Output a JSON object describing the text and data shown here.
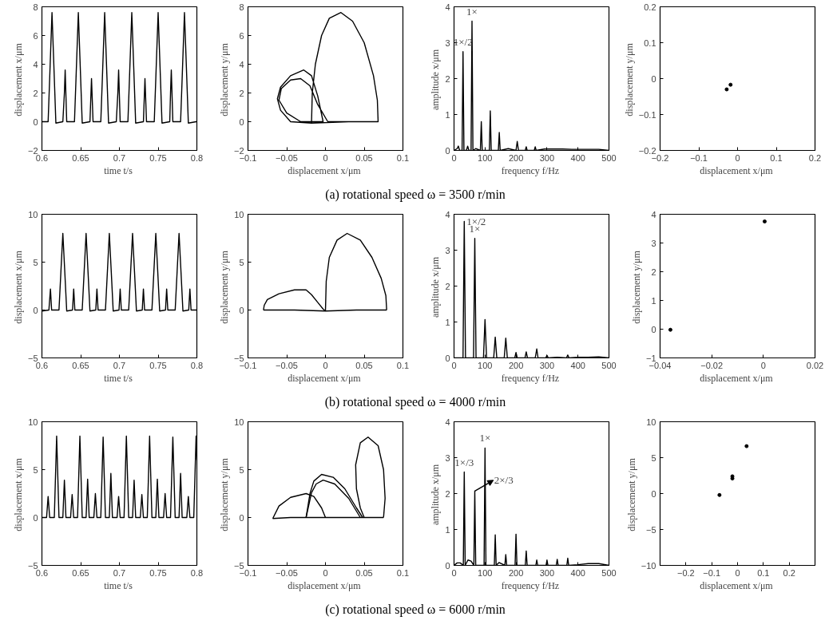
{
  "chart_data": [
    {
      "type": "line",
      "xlabel": "time  t/s",
      "ylabel": "displacement  x/μm",
      "xlim": [
        0.6,
        0.8
      ],
      "ylim": [
        -2,
        8
      ],
      "xticks": [
        0.6,
        0.65,
        0.7,
        0.75,
        0.8
      ],
      "yticks": [
        -2,
        0,
        2,
        4,
        6,
        8
      ],
      "grid": false,
      "line_style": "solid",
      "annotations": [
        "(a) rotational speed ω = 3500 r/min"
      ],
      "series": [
        {
          "color": "#000000",
          "x": [
            0.6,
            0.608,
            0.61,
            0.613,
            0.616,
            0.618,
            0.627,
            0.629,
            0.63,
            0.632,
            0.642,
            0.644,
            0.647,
            0.65,
            0.652,
            0.662,
            0.663,
            0.664,
            0.666,
            0.676,
            0.678,
            0.681,
            0.684,
            0.686,
            0.696,
            0.698,
            0.699,
            0.701,
            0.711,
            0.713,
            0.716,
            0.719,
            0.721,
            0.731,
            0.732,
            0.733,
            0.735,
            0.745,
            0.747,
            0.75,
            0.753,
            0.755,
            0.765,
            0.766,
            0.767,
            0.769,
            0.779,
            0.781,
            0.784,
            0.787,
            0.789,
            0.799,
            0.8
          ],
          "values": [
            0,
            0,
            3,
            7.6,
            3,
            -0.1,
            0,
            2,
            3.6,
            0,
            0,
            3,
            7.6,
            3,
            -0.1,
            0,
            1.5,
            3.0,
            0,
            0,
            3,
            7.6,
            3,
            -0.1,
            0,
            2,
            3.6,
            0,
            0,
            3,
            7.6,
            3,
            -0.1,
            0,
            1.5,
            3.0,
            0,
            0,
            3,
            7.6,
            3,
            -0.1,
            0,
            2,
            3.6,
            0,
            0,
            3,
            7.6,
            3,
            -0.1,
            0,
            0
          ]
        }
      ]
    },
    {
      "type": "line",
      "xlabel": "displacement  x/μm",
      "ylabel": "displacement  y/μm",
      "xlim": [
        -0.1,
        0.1
      ],
      "ylim": [
        -2,
        8
      ],
      "xticks": [
        -0.1,
        -0.05,
        0,
        0.05,
        0.1
      ],
      "yticks": [
        -2,
        0,
        2,
        4,
        6,
        8
      ],
      "grid": false,
      "line_style": "solid",
      "series": [
        {
          "color": "#000000",
          "x": [
            -0.018,
            -0.017,
            -0.013,
            -0.005,
            0.005,
            0.02,
            0.035,
            0.05,
            0.062,
            0.067,
            0.068,
            0.03,
            -0.018,
            -0.045,
            -0.058,
            -0.062,
            -0.058,
            -0.045,
            -0.028,
            -0.018,
            -0.01,
            -0.003,
            -0.032,
            -0.05,
            -0.06,
            -0.057,
            -0.045,
            -0.032,
            -0.02,
            -0.01,
            0.003,
            0.068
          ],
          "values": [
            -0.1,
            2,
            4,
            6,
            7.2,
            7.6,
            7.0,
            5.5,
            3.2,
            1.5,
            0,
            0,
            -0.1,
            0,
            0.8,
            1.6,
            2.4,
            3.2,
            3.6,
            3.2,
            1.8,
            0,
            0,
            0.6,
            1.5,
            2.3,
            2.9,
            3.0,
            2.5,
            1.2,
            0,
            0
          ]
        }
      ]
    },
    {
      "type": "line",
      "xlabel": "frequency  f/Hz",
      "ylabel": "amplitude  x/μm",
      "xlim": [
        0,
        500
      ],
      "ylim": [
        0,
        4
      ],
      "xticks": [
        0,
        100,
        200,
        300,
        400,
        500
      ],
      "yticks": [
        0,
        1,
        2,
        3,
        4
      ],
      "grid": false,
      "line_style": "solid",
      "annotations": [
        {
          "text": "1×/2",
          "x": 29,
          "y": 2.75
        },
        {
          "text": "1×",
          "x": 58,
          "y": 3.6
        }
      ],
      "series": [
        {
          "color": "#000000",
          "x": [
            0,
            10,
            14,
            18,
            26,
            29,
            32,
            40,
            44,
            48,
            55,
            58,
            61,
            70,
            85,
            88,
            91,
            114,
            117,
            120,
            143,
            146,
            149,
            175,
            200,
            204,
            208,
            230,
            233,
            236,
            259,
            262,
            265,
            292,
            350,
            380,
            408,
            438,
            467,
            500
          ],
          "values": [
            0,
            0.05,
            0.12,
            0,
            0,
            2.75,
            0,
            0,
            0.12,
            0,
            0,
            3.6,
            0,
            0.05,
            0,
            0.8,
            0,
            0,
            1.1,
            0,
            0,
            0.5,
            0,
            0.05,
            0,
            0.25,
            0,
            0,
            0.1,
            0,
            0,
            0.1,
            0,
            0.04,
            0.04,
            0.03,
            0.03,
            0.03,
            0.03,
            0
          ]
        }
      ]
    },
    {
      "type": "scatter",
      "xlabel": "displacement  x/μm",
      "ylabel": "displacement  y/μm",
      "xlim": [
        -0.2,
        0.2
      ],
      "ylim": [
        -0.2,
        0.2
      ],
      "xticks": [
        -0.2,
        -0.1,
        0,
        0.1,
        0.2
      ],
      "yticks": [
        -0.2,
        -0.1,
        0,
        0.1,
        0.2
      ],
      "grid": false,
      "marker": "circle",
      "series": [
        {
          "color": "#000000",
          "x": [
            -0.028,
            -0.018
          ],
          "values": [
            -0.03,
            -0.017
          ]
        }
      ]
    },
    {
      "type": "line",
      "xlabel": "time  t/s",
      "ylabel": "displacement  x/μm",
      "xlim": [
        0.6,
        0.8
      ],
      "ylim": [
        -5,
        10
      ],
      "xticks": [
        0.6,
        0.65,
        0.7,
        0.75,
        0.8
      ],
      "yticks": [
        -5,
        0,
        5,
        10
      ],
      "grid": false,
      "line_style": "solid",
      "annotations": [
        "(b) rotational speed ω = 4000 r/min"
      ],
      "series": [
        {
          "color": "#000000",
          "x": [
            0.6,
            0.609,
            0.611,
            0.6125,
            0.622,
            0.6245,
            0.627,
            0.6295,
            0.632,
            0.6395,
            0.641,
            0.6425,
            0.652,
            0.6545,
            0.657,
            0.6595,
            0.662,
            0.6695,
            0.671,
            0.6725,
            0.682,
            0.6845,
            0.687,
            0.6895,
            0.692,
            0.6995,
            0.701,
            0.7025,
            0.712,
            0.7145,
            0.717,
            0.7195,
            0.722,
            0.7295,
            0.731,
            0.7325,
            0.742,
            0.7445,
            0.747,
            0.7495,
            0.752,
            0.7595,
            0.761,
            0.7625,
            0.772,
            0.7745,
            0.777,
            0.7795,
            0.782,
            0.7895,
            0.791,
            0.7925,
            0.8
          ],
          "values": [
            -0.1,
            0,
            2.2,
            0,
            0,
            4,
            8,
            4,
            -0.1,
            0,
            2.2,
            0,
            0,
            4,
            8,
            4,
            -0.1,
            0,
            2.2,
            0,
            0,
            4,
            8,
            4,
            -0.1,
            0,
            2.2,
            0,
            0,
            4,
            8,
            4,
            -0.1,
            0,
            2.2,
            0,
            0,
            4,
            8,
            4,
            -0.1,
            0,
            2.2,
            0,
            0,
            4,
            8,
            4,
            -0.1,
            0,
            2.2,
            0,
            0
          ]
        }
      ]
    },
    {
      "type": "line",
      "xlabel": "displacement  x/μm",
      "ylabel": "displacement  y/μm",
      "xlim": [
        -0.1,
        0.1
      ],
      "ylim": [
        -5,
        10
      ],
      "xticks": [
        -0.1,
        -0.05,
        0,
        0.05,
        0.1
      ],
      "yticks": [
        -5,
        0,
        5,
        10
      ],
      "grid": false,
      "line_style": "solid",
      "series": [
        {
          "color": "#000000",
          "x": [
            0,
            0.001,
            0.005,
            0.015,
            0.028,
            0.045,
            0.06,
            0.072,
            0.078,
            0.079
          ],
          "values": [
            -0.1,
            3,
            5.5,
            7.3,
            8.0,
            7.3,
            5.5,
            3.3,
            1.5,
            0
          ]
        },
        {
          "color": "#000000",
          "x": [
            -0.08,
            -0.04,
            0,
            0.04,
            0.079
          ],
          "values": [
            0,
            0,
            -0.1,
            0,
            0
          ]
        },
        {
          "color": "#000000",
          "x": [
            -0.08,
            -0.079,
            -0.075,
            -0.06,
            -0.04,
            -0.025,
            -0.018,
            -0.01,
            -0.003,
            0
          ],
          "values": [
            0,
            0.5,
            1.1,
            1.7,
            2.1,
            2.1,
            1.6,
            0.8,
            0.1,
            -0.1
          ]
        }
      ]
    },
    {
      "type": "line",
      "xlabel": "frequency  f/Hz",
      "ylabel": "amplitude  x/μm",
      "xlim": [
        0,
        500
      ],
      "ylim": [
        0,
        4
      ],
      "xticks": [
        0,
        100,
        200,
        300,
        400,
        500
      ],
      "yticks": [
        0,
        1,
        2,
        3,
        4
      ],
      "grid": false,
      "line_style": "solid",
      "annotations": [
        {
          "text": "1×/2",
          "x": 33,
          "y": 3.8
        },
        {
          "text": "1×",
          "x": 67,
          "y": 3.33
        }
      ],
      "series": [
        {
          "color": "#000000",
          "x": [
            0,
            29,
            33,
            37,
            63,
            67,
            71,
            95,
            100,
            105,
            128,
            133,
            138,
            162,
            167,
            172,
            196,
            200,
            204,
            229,
            233,
            237,
            262,
            267,
            271,
            296,
            300,
            304,
            333,
            363,
            367,
            371,
            400,
            433,
            467,
            500
          ],
          "values": [
            0,
            0,
            3.8,
            0,
            0,
            3.33,
            0,
            0,
            1.07,
            0,
            0,
            0.58,
            0,
            0,
            0.55,
            0,
            0,
            0.15,
            0,
            0,
            0.17,
            0,
            0,
            0.25,
            0,
            0,
            0.07,
            0,
            0.02,
            0,
            0.08,
            0,
            0.02,
            0.02,
            0.03,
            0
          ]
        }
      ]
    },
    {
      "type": "scatter",
      "xlabel": "displacement  x/μm",
      "ylabel": "displacement  y/μm",
      "xlim": [
        -0.04,
        0.02
      ],
      "ylim": [
        -1,
        4
      ],
      "xticks": [
        -0.04,
        -0.02,
        0,
        0.02
      ],
      "yticks": [
        -1,
        0,
        1,
        2,
        3,
        4
      ],
      "grid": false,
      "marker": "circle",
      "series": [
        {
          "color": "#000000",
          "x": [
            -0.036,
            0.0005
          ],
          "values": [
            -0.02,
            3.75
          ]
        }
      ]
    },
    {
      "type": "line",
      "xlabel": "time  t/s",
      "ylabel": "displacement  x/μm",
      "xlim": [
        0.6,
        0.8
      ],
      "ylim": [
        -5,
        10
      ],
      "xticks": [
        0.6,
        0.65,
        0.7,
        0.75,
        0.8
      ],
      "yticks": [
        -5,
        0,
        5,
        10
      ],
      "grid": false,
      "line_style": "solid",
      "annotations": [
        "(c) rotational speed ω = 6000 r/min"
      ],
      "series": [
        {
          "color": "#000000",
          "x": [
            0.6,
            0.606,
            0.608,
            0.61,
            0.616,
            0.619,
            0.622,
            0.627,
            0.629,
            0.631,
            0.637,
            0.639,
            0.641,
            0.646,
            0.649,
            0.652,
            0.657,
            0.659,
            0.661,
            0.667,
            0.669,
            0.671,
            0.676,
            0.679,
            0.682,
            0.687,
            0.689,
            0.691,
            0.697,
            0.699,
            0.701,
            0.706,
            0.709,
            0.712,
            0.717,
            0.719,
            0.721,
            0.727,
            0.729,
            0.731,
            0.736,
            0.739,
            0.742,
            0.747,
            0.749,
            0.751,
            0.757,
            0.759,
            0.761,
            0.766,
            0.769,
            0.772,
            0.777,
            0.779,
            0.781,
            0.787,
            0.789,
            0.791,
            0.796,
            0.799,
            0.8
          ],
          "values": [
            0,
            0,
            2.2,
            0,
            0,
            8.5,
            0,
            0,
            3.9,
            0,
            0,
            2.4,
            0,
            0,
            8.5,
            0,
            0,
            4.0,
            0,
            0,
            2.5,
            0,
            0,
            8.4,
            0,
            0,
            4.6,
            0,
            0,
            2.2,
            0,
            0,
            8.5,
            0,
            0,
            3.9,
            0,
            0,
            2.4,
            0,
            0,
            8.5,
            0,
            0,
            4.0,
            0,
            0,
            2.5,
            0,
            0,
            8.4,
            0,
            0,
            4.6,
            0,
            0,
            2.2,
            0,
            0,
            8.5,
            6
          ]
        }
      ]
    },
    {
      "type": "line",
      "xlabel": "displacement  x/μm",
      "ylabel": "displacement  y/μm",
      "xlim": [
        -0.1,
        0.1
      ],
      "ylim": [
        -5,
        10
      ],
      "xticks": [
        -0.1,
        -0.05,
        0,
        0.05,
        0.1
      ],
      "yticks": [
        -5,
        0,
        5,
        10
      ],
      "grid": false,
      "line_style": "solid",
      "series": [
        {
          "color": "#000000",
          "x": [
            -0.068,
            -0.06,
            -0.045,
            -0.025,
            -0.015,
            -0.005,
            0
          ],
          "values": [
            -0.1,
            1.2,
            2.1,
            2.5,
            2.2,
            1.0,
            0
          ]
        },
        {
          "color": "#000000",
          "x": [
            -0.025,
            -0.02,
            -0.015,
            -0.005,
            0.01,
            0.025,
            0.04,
            0.048
          ],
          "values": [
            0,
            2.5,
            3.8,
            4.5,
            4.2,
            3.0,
            1.0,
            0
          ]
        },
        {
          "color": "#000000",
          "x": [
            -0.025,
            -0.018,
            -0.012,
            -0.003,
            0.012,
            0.03,
            0.045
          ],
          "values": [
            0,
            2.6,
            3.5,
            3.9,
            3.5,
            2.0,
            0
          ]
        },
        {
          "color": "#000000",
          "x": [
            0.05,
            0.045,
            0.04,
            0.039,
            0.045,
            0.055,
            0.068,
            0.075,
            0.077,
            0.075
          ],
          "values": [
            0,
            1,
            3,
            5.5,
            7.8,
            8.4,
            7.5,
            5,
            2,
            0
          ]
        },
        {
          "color": "#000000",
          "x": [
            -0.068,
            -0.045,
            -0.025,
            0,
            0.025,
            0.045,
            0.075
          ],
          "values": [
            -0.1,
            0,
            0,
            0,
            0,
            0,
            0
          ]
        }
      ]
    },
    {
      "type": "line",
      "xlabel": "frequency  f/Hz",
      "ylabel": "amplitude  x/μm",
      "xlim": [
        0,
        500
      ],
      "ylim": [
        0,
        4
      ],
      "xticks": [
        0,
        100,
        200,
        300,
        400,
        500
      ],
      "yticks": [
        0,
        1,
        2,
        3,
        4
      ],
      "grid": false,
      "line_style": "solid",
      "annotations": [
        {
          "text": "1×/3",
          "x": 33,
          "y": 2.6
        },
        {
          "text": "1×",
          "x": 100,
          "y": 3.27
        },
        {
          "text": "2×/3",
          "x": 67,
          "y": 2.07
        }
      ],
      "series": [
        {
          "color": "#000000",
          "x": [
            0,
            10,
            20,
            30,
            33,
            36,
            45,
            55,
            64,
            67,
            70,
            97,
            100,
            103,
            130,
            133,
            136,
            145,
            164,
            167,
            170,
            197,
            200,
            203,
            230,
            233,
            236,
            264,
            267,
            270,
            297,
            300,
            303,
            330,
            333,
            336,
            364,
            367,
            370,
            400,
            433,
            467,
            500
          ],
          "values": [
            0,
            0.07,
            0.07,
            0,
            2.6,
            0,
            0.15,
            0.12,
            0,
            2.07,
            0,
            0,
            3.27,
            0,
            0,
            0.85,
            0,
            0.08,
            0,
            0.3,
            0,
            0,
            0.87,
            0,
            0,
            0.4,
            0,
            0,
            0.15,
            0,
            0,
            0.15,
            0,
            0,
            0.17,
            0,
            0,
            0.2,
            0,
            0.02,
            0.05,
            0.05,
            0
          ]
        }
      ]
    },
    {
      "type": "scatter",
      "xlabel": "displacement  x/μm",
      "ylabel": "displacement  y/μm",
      "xlim": [
        -0.3,
        0.3
      ],
      "ylim": [
        -10,
        10
      ],
      "xticks": [
        -0.2,
        -0.1,
        0,
        0.1,
        0.2
      ],
      "yticks": [
        -10,
        -5,
        0,
        5,
        10
      ],
      "grid": false,
      "marker": "circle",
      "series": [
        {
          "color": "#000000",
          "x": [
            -0.07,
            -0.02,
            -0.02,
            0.035
          ],
          "values": [
            -0.2,
            2.1,
            2.4,
            6.6
          ]
        }
      ]
    }
  ]
}
